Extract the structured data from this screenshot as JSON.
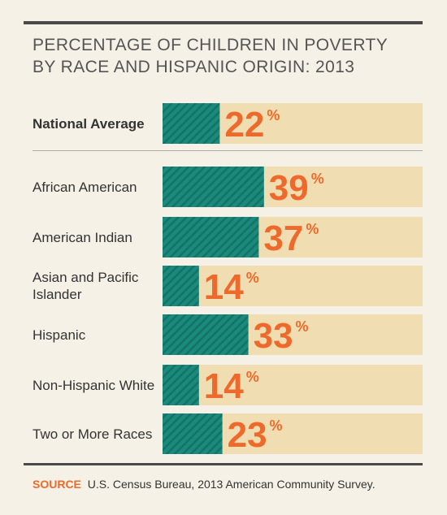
{
  "chart_data": {
    "type": "bar",
    "orientation": "horizontal",
    "title_lines": [
      "PERCENTAGE OF CHILDREN IN POVERTY",
      "BY RACE AND HISPANIC ORIGIN: 2013"
    ],
    "categories": [
      "National Average",
      "African American",
      "American Indian",
      "Asian and Pacific Islander",
      "Hispanic",
      "Non-Hispanic White",
      "Two or More Races"
    ],
    "values": [
      22,
      39,
      37,
      14,
      33,
      14,
      23
    ],
    "value_suffix": "%",
    "xlim": [
      0,
      100
    ],
    "colors": {
      "bar": "#1a8a7c",
      "bar_stripe": "#147266",
      "track": "#f0deb2",
      "value_label": "#ee6a2c"
    }
  },
  "source": {
    "tag": "SOURCE",
    "text": "U.S. Census Bureau, 2013 American Community Survey."
  }
}
